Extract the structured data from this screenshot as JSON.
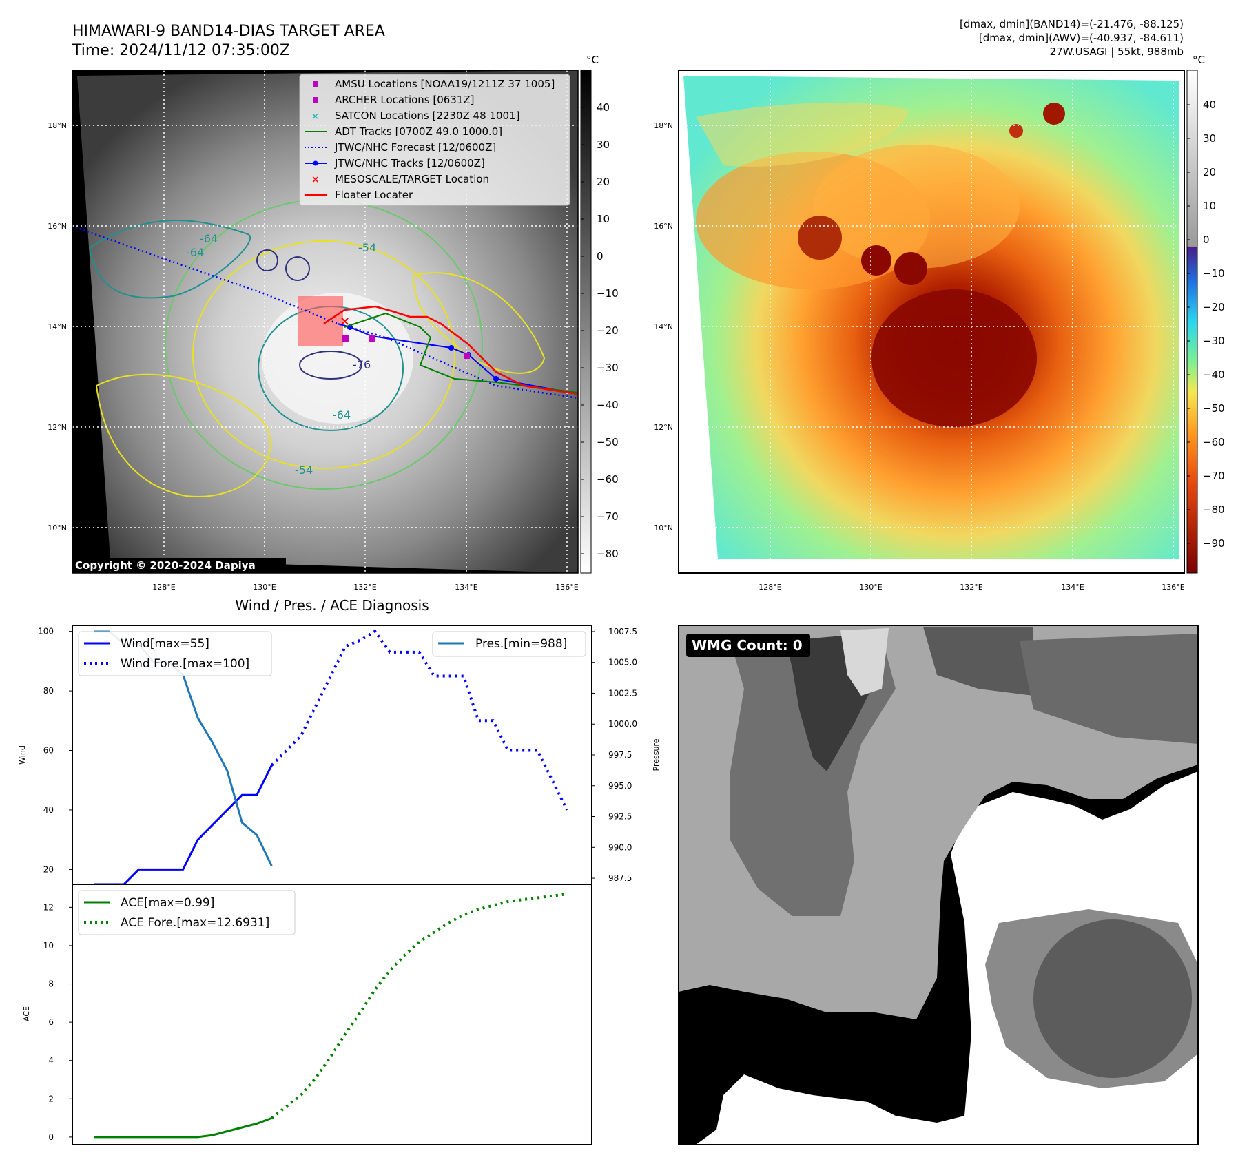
{
  "header": {
    "title_line1": "HIMAWARI-9 BAND14-DIAS TARGET AREA",
    "title_line2": "Time: 2024/11/12 07:35:00Z",
    "info_line1": "[dmax, dmin](BAND14)=(-21.476, -88.125)",
    "info_line2": "[dmax, dmin](AWV)=(-40.937, -84.611)",
    "info_line3": "27W.USAGI | 55kt, 988mb"
  },
  "map": {
    "lat_labels": [
      "18°N",
      "16°N",
      "14°N",
      "12°N",
      "10°N"
    ],
    "lon_labels": [
      "128°E",
      "130°E",
      "132°E",
      "134°E",
      "136°E"
    ],
    "contour_labels": [
      "-54",
      "-64",
      "-64",
      "-76",
      "-54",
      "-64"
    ],
    "copyright": "Copyright © 2020-2024 Dapiya",
    "legend": [
      {
        "label": "AMSU Locations [NOAA19/1211Z 37 1005]",
        "marker": "square",
        "color": "#c000c0"
      },
      {
        "label": "ARCHER Locations [0631Z]",
        "marker": "square",
        "color": "#c000c0"
      },
      {
        "label": "SATCON Locations [2230Z 48 1001]",
        "marker": "x",
        "color": "#20b8c0"
      },
      {
        "label": "ADT Tracks [0700Z 49.0 1000.0]",
        "marker": "line",
        "color": "#008000"
      },
      {
        "label": "JTWC/NHC Forecast [12/0600Z]",
        "marker": "dotted",
        "color": "#0000ff"
      },
      {
        "label": "JTWC/NHC Tracks [12/0600Z]",
        "marker": "line-dot",
        "color": "#0000ff"
      },
      {
        "label": "MESOSCALE/TARGET Location",
        "marker": "x",
        "color": "#ff0000"
      },
      {
        "label": "Floater Locater",
        "marker": "line",
        "color": "#ff0000"
      }
    ]
  },
  "colorbar_gray": {
    "unit": "°C",
    "ticks": [
      "40",
      "30",
      "20",
      "10",
      "0",
      "−10",
      "−20",
      "−30",
      "−40",
      "−50",
      "−60",
      "−70",
      "−80"
    ]
  },
  "colorbar_color": {
    "unit": "°C",
    "ticks": [
      "40",
      "30",
      "20",
      "10",
      "0",
      "−10",
      "−20",
      "−30",
      "−40",
      "−50",
      "−60",
      "−70",
      "−80",
      "−90"
    ]
  },
  "wmg": {
    "label": "WMG Count: 0"
  },
  "chart_data": [
    {
      "type": "line",
      "title": "Wind / Pres. / ACE Diagnosis",
      "ylabel": "Wind",
      "y2label": "Pressure",
      "ylim": [
        15,
        102
      ],
      "y2lim": [
        987,
        1008
      ],
      "yticks": [
        "100",
        "80",
        "60",
        "40",
        "20"
      ],
      "y2ticks": [
        "1007.5",
        "1005.0",
        "1002.5",
        "1000.0",
        "997.5",
        "995.0",
        "992.5",
        "990.0",
        "987.5"
      ],
      "series": [
        {
          "name": "Wind[max=55]",
          "color": "#0000ff",
          "style": "solid",
          "x": [
            0,
            1,
            2,
            3,
            4,
            5,
            6,
            7,
            8,
            9,
            10,
            11,
            12
          ],
          "y": [
            15,
            15,
            15,
            20,
            20,
            20,
            20,
            30,
            35,
            40,
            45,
            45,
            55
          ]
        },
        {
          "name": "Wind Fore.[max=100]",
          "color": "#0000ff",
          "style": "dotted",
          "x": [
            12,
            13,
            14,
            15,
            16,
            17,
            18,
            19,
            20,
            21,
            22,
            23,
            24,
            25,
            26,
            27,
            28,
            29,
            30,
            31,
            32
          ],
          "y": [
            55,
            60,
            65,
            75,
            85,
            95,
            97,
            100,
            93,
            93,
            93,
            85,
            85,
            85,
            70,
            70,
            60,
            60,
            60,
            50,
            40
          ]
        },
        {
          "name": "Pres.[min=988]",
          "color": "#1f77b4",
          "style": "solid",
          "axis": "right",
          "x": [
            0,
            1,
            2,
            3,
            4,
            5,
            6,
            7,
            8,
            9,
            10,
            11,
            12
          ],
          "y": [
            1007.5,
            1007.5,
            1006.5,
            1006.5,
            1005,
            1005,
            1004,
            1000.5,
            998.5,
            996.2,
            992,
            991,
            988.5
          ]
        }
      ]
    },
    {
      "type": "line",
      "ylabel": "ACE",
      "ylim": [
        -0.4,
        13.2
      ],
      "yticks": [
        "12",
        "10",
        "8",
        "6",
        "4",
        "2",
        "0"
      ],
      "series": [
        {
          "name": "ACE[max=0.99]",
          "color": "#008000",
          "style": "solid",
          "x": [
            0,
            1,
            2,
            3,
            4,
            5,
            6,
            7,
            8,
            9,
            10,
            11,
            12
          ],
          "y": [
            0,
            0,
            0,
            0,
            0,
            0,
            0,
            0,
            0.1,
            0.3,
            0.5,
            0.7,
            0.99
          ]
        },
        {
          "name": "ACE Fore.[max=12.6931]",
          "color": "#008000",
          "style": "dotted",
          "x": [
            12,
            13,
            14,
            15,
            16,
            17,
            18,
            19,
            20,
            21,
            22,
            23,
            24,
            25,
            26,
            27,
            28,
            29,
            30,
            31,
            32
          ],
          "y": [
            0.99,
            1.6,
            2.2,
            3.1,
            4.2,
            5.4,
            6.5,
            7.7,
            8.7,
            9.5,
            10.2,
            10.7,
            11.2,
            11.6,
            11.9,
            12.1,
            12.3,
            12.4,
            12.5,
            12.6,
            12.69
          ]
        }
      ]
    }
  ]
}
